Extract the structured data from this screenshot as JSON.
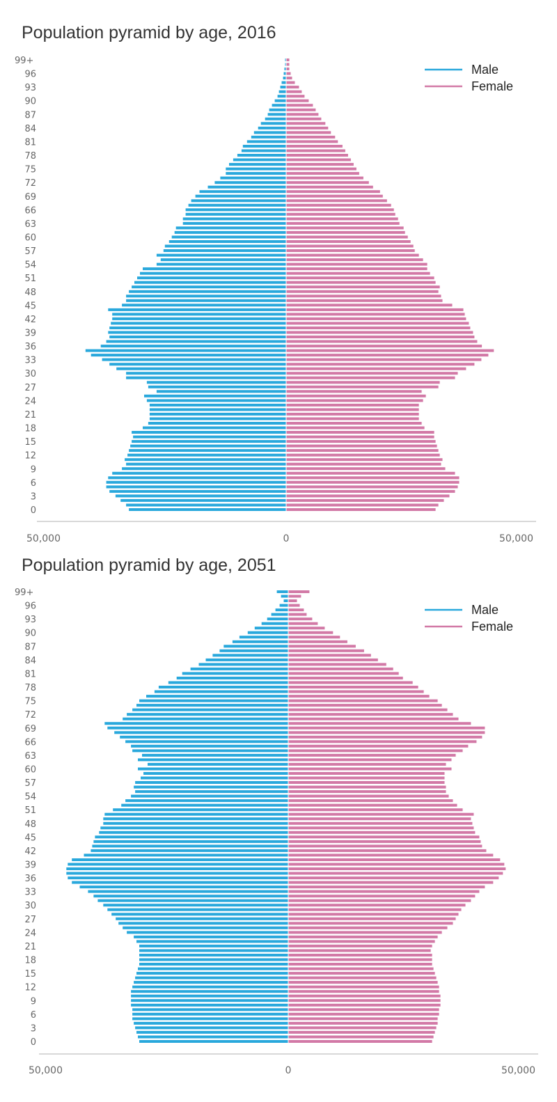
{
  "colors": {
    "male": "#29a8dc",
    "female": "#d279a6",
    "axis": "#cccccc",
    "text": "#666666",
    "title": "#333333"
  },
  "chart_data": [
    {
      "type": "bar",
      "orientation": "horizontal-pyramid",
      "title": "Population pyramid by age, 2016",
      "xlabel": "",
      "ylabel": "",
      "xlim": [
        -54000,
        54000
      ],
      "x_tick_labels": [
        "50,000",
        "0",
        "50,000"
      ],
      "y_tick_labels": [
        "99+",
        "96",
        "93",
        "90",
        "87",
        "84",
        "81",
        "78",
        "75",
        "72",
        "69",
        "66",
        "63",
        "60",
        "57",
        "54",
        "51",
        "48",
        "45",
        "42",
        "39",
        "36",
        "33",
        "30",
        "27",
        "24",
        "21",
        "18",
        "15",
        "12",
        "9",
        "6",
        "3",
        "0"
      ],
      "legend": {
        "position": "top-right",
        "entries": [
          "Male",
          "Female"
        ]
      },
      "grid": false,
      "categories_note": "ages 0 to 99+ (index 0 = age 0, index 99 = 99+)",
      "series": [
        {
          "name": "Male",
          "values": [
            34000,
            34600,
            35800,
            36900,
            38200,
            38900,
            38900,
            38500,
            37600,
            35500,
            34600,
            34900,
            34300,
            34000,
            33700,
            33400,
            33100,
            33400,
            31000,
            29800,
            29500,
            29500,
            29500,
            29500,
            30100,
            30700,
            28000,
            29800,
            30100,
            34600,
            34600,
            36700,
            38200,
            39800,
            42200,
            43400,
            40100,
            38900,
            38200,
            38500,
            38200,
            37900,
            37600,
            37600,
            38500,
            35500,
            34600,
            34600,
            34000,
            33400,
            32800,
            32200,
            31600,
            31000,
            28000,
            27100,
            28000,
            26500,
            26200,
            25300,
            24700,
            24100,
            23800,
            22300,
            22300,
            21700,
            21700,
            21100,
            20500,
            19600,
            18700,
            16900,
            15400,
            14200,
            13000,
            13000,
            12300,
            11400,
            10500,
            9600,
            9300,
            8400,
            7500,
            6900,
            6000,
            5400,
            4500,
            3900,
            3600,
            3000,
            2400,
            1800,
            1500,
            1200,
            900,
            600,
            450,
            300,
            150,
            150
          ]
        },
        {
          "name": "Female",
          "values": [
            32200,
            32800,
            34000,
            35200,
            36400,
            37000,
            37300,
            37300,
            36400,
            34300,
            33400,
            33700,
            33100,
            32800,
            32500,
            32200,
            31900,
            31900,
            29800,
            29200,
            28600,
            28600,
            28600,
            28600,
            29500,
            30100,
            29200,
            32800,
            33100,
            36400,
            37000,
            38800,
            40600,
            42100,
            43600,
            44800,
            42200,
            41200,
            40600,
            40300,
            39700,
            39400,
            38800,
            38500,
            38200,
            35800,
            33700,
            33400,
            32800,
            33100,
            32200,
            31900,
            31000,
            30400,
            30400,
            29500,
            28600,
            27700,
            27400,
            26800,
            26200,
            25600,
            25300,
            24400,
            24100,
            23500,
            23200,
            22600,
            21700,
            20800,
            20200,
            18700,
            17800,
            16600,
            15700,
            15100,
            14500,
            13900,
            13300,
            12700,
            12100,
            11100,
            10500,
            9600,
            9000,
            8400,
            7500,
            6900,
            6300,
            5700,
            4800,
            3900,
            3300,
            2700,
            1800,
            1200,
            900,
            600,
            600,
            600
          ]
        }
      ]
    },
    {
      "type": "bar",
      "orientation": "horizontal-pyramid",
      "title": "Population pyramid by age, 2051",
      "xlabel": "",
      "ylabel": "",
      "xlim": [
        -54000,
        54000
      ],
      "x_tick_labels": [
        "50,000",
        "0",
        "50,000"
      ],
      "y_tick_labels": [
        "99+",
        "96",
        "93",
        "90",
        "87",
        "84",
        "81",
        "78",
        "75",
        "72",
        "69",
        "66",
        "63",
        "60",
        "57",
        "54",
        "51",
        "48",
        "45",
        "42",
        "39",
        "36",
        "33",
        "30",
        "27",
        "24",
        "21",
        "18",
        "15",
        "12",
        "9",
        "6",
        "3",
        "0"
      ],
      "legend": {
        "position": "top-right",
        "entries": [
          "Male",
          "Female"
        ]
      },
      "grid": false,
      "categories_note": "ages 0 to 99+ (index 0 = age 0, index 99 = 99+)",
      "series": [
        {
          "name": "Male",
          "values": [
            32200,
            32500,
            32800,
            33100,
            33400,
            33700,
            33700,
            33700,
            34000,
            34000,
            34000,
            34000,
            33700,
            33400,
            33100,
            32800,
            32500,
            32200,
            32200,
            32200,
            32200,
            32200,
            32800,
            33400,
            34900,
            35800,
            36700,
            37300,
            38200,
            39100,
            40000,
            41200,
            42100,
            43300,
            45100,
            46800,
            47700,
            48000,
            48000,
            47700,
            46800,
            44200,
            42700,
            42400,
            42100,
            41800,
            40900,
            40600,
            40000,
            40000,
            39700,
            37900,
            36100,
            35200,
            34000,
            33100,
            33400,
            33100,
            31900,
            31300,
            32500,
            30400,
            32500,
            31600,
            33700,
            34000,
            35200,
            36400,
            37600,
            39100,
            39700,
            35800,
            34900,
            33700,
            32800,
            32200,
            30700,
            28900,
            28000,
            25900,
            24100,
            22900,
            21100,
            19300,
            17800,
            16300,
            14800,
            13900,
            12000,
            10500,
            8700,
            7200,
            5700,
            4500,
            3600,
            2700,
            1800,
            900,
            1500,
            2400
          ]
        },
        {
          "name": "Female",
          "values": [
            31000,
            31300,
            31600,
            31900,
            32200,
            32200,
            32500,
            32500,
            32800,
            32800,
            32800,
            32500,
            32500,
            32200,
            31900,
            31600,
            31300,
            31000,
            31000,
            31000,
            30700,
            31000,
            31600,
            32200,
            33100,
            34300,
            35500,
            36100,
            36700,
            37300,
            38200,
            39400,
            40300,
            41200,
            42400,
            44200,
            45400,
            46300,
            46900,
            46600,
            45700,
            44200,
            42700,
            41800,
            41500,
            41200,
            40300,
            40000,
            39700,
            39400,
            40000,
            37600,
            36400,
            35500,
            34600,
            34000,
            34000,
            33700,
            33700,
            33700,
            35200,
            34000,
            35200,
            36100,
            37600,
            38800,
            40600,
            41800,
            42400,
            42400,
            39400,
            36700,
            35500,
            34300,
            33100,
            32200,
            30400,
            29200,
            28000,
            26800,
            24700,
            23800,
            22600,
            21100,
            19300,
            17800,
            16300,
            14500,
            12700,
            11100,
            9600,
            7800,
            6300,
            5100,
            3900,
            3300,
            2400,
            1800,
            2700,
            4500
          ]
        }
      ]
    }
  ]
}
